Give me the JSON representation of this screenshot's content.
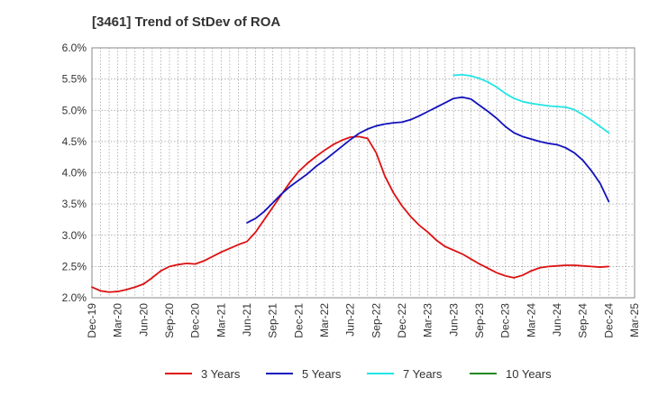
{
  "chart_data": {
    "type": "line",
    "title": "[3461]  Trend of StDev of ROA",
    "xlabel": "",
    "ylabel": "",
    "ylim": [
      2.0,
      6.0
    ],
    "yticks": [
      2.0,
      2.5,
      3.0,
      3.5,
      4.0,
      4.5,
      5.0,
      5.5,
      6.0
    ],
    "ytick_labels": [
      "2.0%",
      "2.5%",
      "3.0%",
      "3.5%",
      "4.0%",
      "4.5%",
      "5.0%",
      "5.5%",
      "6.0%"
    ],
    "x_ticks": [
      "Dec-19",
      "Mar-20",
      "Jun-20",
      "Sep-20",
      "Dec-20",
      "Mar-21",
      "Jun-21",
      "Sep-21",
      "Dec-21",
      "Mar-22",
      "Jun-22",
      "Sep-22",
      "Dec-22",
      "Mar-23",
      "Jun-23",
      "Sep-23",
      "Dec-23",
      "Mar-24",
      "Jun-24",
      "Sep-24",
      "Dec-24",
      "Mar-25"
    ],
    "grid": true,
    "legend_position": "bottom",
    "series": [
      {
        "name": "3 Years",
        "color": "#dd1111",
        "x": [
          "2019-12",
          "2020-01",
          "2020-02",
          "2020-03",
          "2020-04",
          "2020-05",
          "2020-06",
          "2020-07",
          "2020-08",
          "2020-09",
          "2020-10",
          "2020-11",
          "2020-12",
          "2021-01",
          "2021-02",
          "2021-03",
          "2021-04",
          "2021-05",
          "2021-06",
          "2021-07",
          "2021-08",
          "2021-09",
          "2021-10",
          "2021-11",
          "2021-12",
          "2022-01",
          "2022-02",
          "2022-03",
          "2022-04",
          "2022-05",
          "2022-06",
          "2022-07",
          "2022-08",
          "2022-09",
          "2022-10",
          "2022-11",
          "2022-12",
          "2023-01",
          "2023-02",
          "2023-03",
          "2023-04",
          "2023-05",
          "2023-06",
          "2023-07",
          "2023-08",
          "2023-09",
          "2023-10",
          "2023-11",
          "2023-12",
          "2024-01",
          "2024-02",
          "2024-03",
          "2024-04",
          "2024-05",
          "2024-06",
          "2024-07",
          "2024-08",
          "2024-09",
          "2024-10",
          "2024-11",
          "2024-12"
        ],
        "values": [
          2.17,
          2.11,
          2.09,
          2.1,
          2.13,
          2.17,
          2.22,
          2.32,
          2.43,
          2.5,
          2.53,
          2.55,
          2.54,
          2.59,
          2.66,
          2.73,
          2.79,
          2.85,
          2.9,
          3.05,
          3.25,
          3.45,
          3.65,
          3.85,
          4.02,
          4.15,
          4.26,
          4.36,
          4.45,
          4.52,
          4.57,
          4.58,
          4.55,
          4.32,
          3.95,
          3.68,
          3.47,
          3.3,
          3.16,
          3.05,
          2.92,
          2.82,
          2.76,
          2.7,
          2.62,
          2.54,
          2.47,
          2.4,
          2.35,
          2.32,
          2.36,
          2.43,
          2.48,
          2.5,
          2.51,
          2.52,
          2.52,
          2.51,
          2.5,
          2.49,
          2.5
        ]
      },
      {
        "name": "5 Years",
        "color": "#1111bb",
        "x": [
          "2021-06",
          "2021-07",
          "2021-08",
          "2021-09",
          "2021-10",
          "2021-11",
          "2021-12",
          "2022-01",
          "2022-02",
          "2022-03",
          "2022-04",
          "2022-05",
          "2022-06",
          "2022-07",
          "2022-08",
          "2022-09",
          "2022-10",
          "2022-11",
          "2022-12",
          "2023-01",
          "2023-02",
          "2023-03",
          "2023-04",
          "2023-05",
          "2023-06",
          "2023-07",
          "2023-08",
          "2023-09",
          "2023-10",
          "2023-11",
          "2023-12",
          "2024-01",
          "2024-02",
          "2024-03",
          "2024-04",
          "2024-05",
          "2024-06",
          "2024-07",
          "2024-08",
          "2024-09",
          "2024-10",
          "2024-11",
          "2024-12"
        ],
        "values": [
          3.2,
          3.27,
          3.38,
          3.52,
          3.66,
          3.78,
          3.88,
          3.98,
          4.1,
          4.2,
          4.31,
          4.42,
          4.53,
          4.63,
          4.7,
          4.75,
          4.78,
          4.8,
          4.81,
          4.85,
          4.91,
          4.98,
          5.05,
          5.12,
          5.19,
          5.21,
          5.18,
          5.08,
          4.98,
          4.87,
          4.74,
          4.64,
          4.58,
          4.54,
          4.5,
          4.47,
          4.45,
          4.4,
          4.32,
          4.2,
          4.03,
          3.83,
          3.54
        ]
      },
      {
        "name": "7 Years",
        "color": "#22e5e5",
        "x": [
          "2023-06",
          "2023-07",
          "2023-08",
          "2023-09",
          "2023-10",
          "2023-11",
          "2023-12",
          "2024-01",
          "2024-02",
          "2024-03",
          "2024-04",
          "2024-05",
          "2024-06",
          "2024-07",
          "2024-08",
          "2024-09",
          "2024-10",
          "2024-11",
          "2024-12"
        ],
        "values": [
          5.56,
          5.57,
          5.55,
          5.51,
          5.45,
          5.37,
          5.27,
          5.19,
          5.14,
          5.11,
          5.09,
          5.07,
          5.06,
          5.05,
          5.01,
          4.93,
          4.84,
          4.74,
          4.64
        ]
      },
      {
        "name": "10 Years",
        "color": "#228822",
        "x": [],
        "values": []
      }
    ]
  }
}
